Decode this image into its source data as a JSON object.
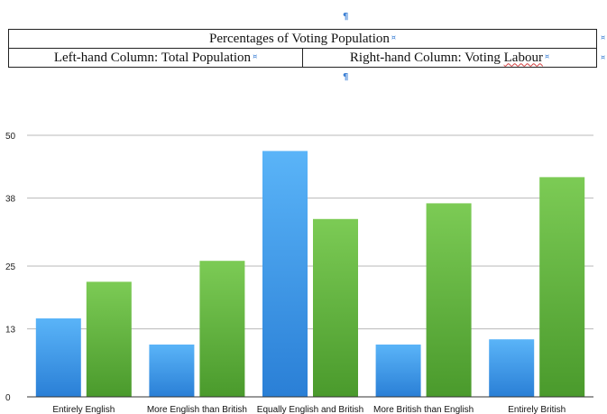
{
  "document": {
    "pilcrow": "¶",
    "cell_marker": "¤",
    "table": {
      "title": "Percentages of Voting Population",
      "left_header_prefix": "Left-hand Column: Total Population",
      "right_header_prefix": "Right-hand Column: Voting ",
      "right_header_flagged_word": "Labour"
    }
  },
  "colors": {
    "series_blue_top": "#5ab4f8",
    "series_blue_bottom": "#2a7fd6",
    "series_green_top": "#7ccb55",
    "series_green_bottom": "#4a9a2c",
    "gridline": "#b8b8b8",
    "axis": "#333333"
  },
  "chart_data": {
    "type": "bar",
    "categories": [
      "Entirely English",
      "More English than British",
      "Equally English and British",
      "More British than English",
      "Entirely British"
    ],
    "series": [
      {
        "values": [
          15,
          10,
          47,
          10,
          11
        ]
      },
      {
        "values": [
          22,
          26,
          34,
          37,
          42
        ]
      }
    ],
    "ylim": [
      0,
      50
    ],
    "yticks": [
      0,
      13,
      25,
      38,
      50
    ],
    "grid": true,
    "legend": "none"
  }
}
